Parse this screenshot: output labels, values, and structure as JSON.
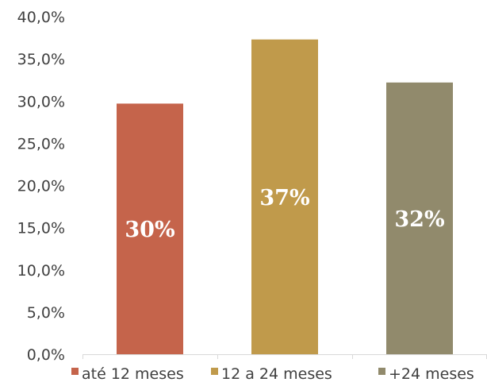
{
  "chart_data": {
    "type": "bar",
    "categories": [
      "até 12 meses",
      "12 a 24 meses",
      "+24 meses"
    ],
    "values": [
      29.7,
      37.3,
      32.2
    ],
    "data_labels": [
      "30%",
      "37%",
      "32%"
    ],
    "colors": [
      "#c5644b",
      "#c09a4b",
      "#918a6c"
    ],
    "y_ticks": [
      "0,0%",
      "5,0%",
      "10,0%",
      "15,0%",
      "20,0%",
      "25,0%",
      "30,0%",
      "35,0%",
      "40,0%"
    ],
    "ylim": [
      0,
      40
    ],
    "title": "",
    "xlabel": "",
    "ylabel": "",
    "grid": false,
    "legend": {
      "position": "bottom",
      "entries": [
        "até 12 meses",
        "12 a 24 meses",
        "+24 meses"
      ]
    }
  }
}
